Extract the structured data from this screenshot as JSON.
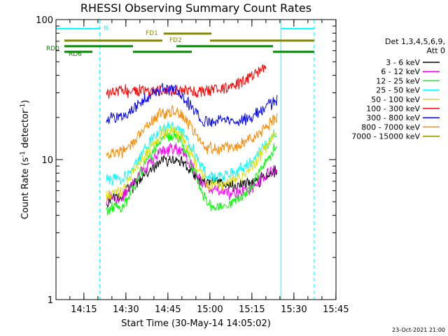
{
  "chart_data": {
    "type": "line",
    "title": "RHESSI Observing Summary Count Rates",
    "xlabel": "Start Time (30-May-14 14:05:02)",
    "ylabel_main": "Count Rate (s",
    "ylabel_sup": "-1",
    "ylabel_tail": " detector",
    "ylabel_end": ")",
    "yscale": "log",
    "ylim": [
      1,
      100
    ],
    "y_ticks": [
      {
        "value": 1,
        "label": "1"
      },
      {
        "value": 10,
        "label": "10"
      },
      {
        "value": 100,
        "label": "100"
      }
    ],
    "xlim_minutes": [
      0,
      100
    ],
    "x_ticks": [
      {
        "minutes": 9.967,
        "label": "14:15"
      },
      {
        "minutes": 24.967,
        "label": "14:30"
      },
      {
        "minutes": 39.967,
        "label": "14:45"
      },
      {
        "minutes": 54.967,
        "label": "15:00"
      },
      {
        "minutes": 69.967,
        "label": "15:15"
      },
      {
        "minutes": 84.967,
        "label": "15:30"
      },
      {
        "minutes": 99.967,
        "label": "15:45"
      }
    ],
    "legend_header": [
      "Det 1,3,4,5,6,9,",
      "Att 0"
    ],
    "legend_position": "right",
    "series": [
      {
        "name": "3 - 6 keV",
        "color": "#000000",
        "points": [
          [
            18,
            4.8
          ],
          [
            20,
            5.5
          ],
          [
            22,
            5.4
          ],
          [
            24,
            5.6
          ],
          [
            26,
            6.2
          ],
          [
            30,
            7.2
          ],
          [
            34,
            8.5
          ],
          [
            38,
            9.8
          ],
          [
            42,
            10.2
          ],
          [
            45,
            9.7
          ],
          [
            48,
            8.4
          ],
          [
            51,
            7.2
          ],
          [
            54,
            6.6
          ],
          [
            56,
            7.2
          ],
          [
            58,
            7.0
          ],
          [
            60,
            6.7
          ],
          [
            62,
            6.5
          ],
          [
            66,
            6.6
          ],
          [
            70,
            6.8
          ],
          [
            72,
            7.0
          ],
          [
            74,
            7.5
          ],
          [
            76,
            8.0
          ],
          [
            78,
            8.2
          ],
          [
            79,
            8.8
          ]
        ]
      },
      {
        "name": "6 - 12 keV",
        "color": "#ff00ff",
        "points": [
          [
            18,
            5.2
          ],
          [
            20,
            5.4
          ],
          [
            22,
            5.3
          ],
          [
            24,
            5.6
          ],
          [
            26,
            6.4
          ],
          [
            30,
            7.9
          ],
          [
            34,
            9.8
          ],
          [
            38,
            11.5
          ],
          [
            42,
            12.0
          ],
          [
            45,
            11.2
          ],
          [
            48,
            9.3
          ],
          [
            51,
            7.4
          ],
          [
            54,
            6.2
          ],
          [
            56,
            6.3
          ],
          [
            58,
            6.0
          ],
          [
            60,
            5.8
          ],
          [
            62,
            5.7
          ],
          [
            66,
            5.9
          ],
          [
            70,
            6.4
          ],
          [
            72,
            6.9
          ],
          [
            74,
            7.5
          ],
          [
            76,
            8.0
          ],
          [
            78,
            8.6
          ],
          [
            79,
            9.0
          ]
        ]
      },
      {
        "name": "12 - 25 keV",
        "color": "#00ff00",
        "points": [
          [
            18,
            4.3
          ],
          [
            20,
            4.5
          ],
          [
            22,
            4.6
          ],
          [
            24,
            4.6
          ],
          [
            26,
            5.4
          ],
          [
            30,
            7.8
          ],
          [
            34,
            11.0
          ],
          [
            38,
            14.0
          ],
          [
            42,
            15.0
          ],
          [
            45,
            13.2
          ],
          [
            48,
            9.8
          ],
          [
            51,
            6.7
          ],
          [
            54,
            4.8
          ],
          [
            56,
            4.7
          ],
          [
            58,
            4.6
          ],
          [
            60,
            4.8
          ],
          [
            62,
            4.9
          ],
          [
            66,
            5.3
          ],
          [
            70,
            6.6
          ],
          [
            72,
            7.6
          ],
          [
            74,
            8.8
          ],
          [
            76,
            10.2
          ],
          [
            78,
            12.0
          ],
          [
            79,
            13.5
          ]
        ]
      },
      {
        "name": "25 - 50 keV",
        "color": "#00ffff",
        "points": [
          [
            18,
            7.2
          ],
          [
            20,
            7.3
          ],
          [
            22,
            7.4
          ],
          [
            24,
            7.5
          ],
          [
            26,
            8.3
          ],
          [
            30,
            10.5
          ],
          [
            34,
            13.7
          ],
          [
            38,
            16.8
          ],
          [
            42,
            17.6
          ],
          [
            45,
            16.1
          ],
          [
            48,
            12.9
          ],
          [
            51,
            9.7
          ],
          [
            54,
            7.7
          ],
          [
            56,
            7.6
          ],
          [
            58,
            7.6
          ],
          [
            60,
            7.7
          ],
          [
            62,
            7.9
          ],
          [
            66,
            8.6
          ],
          [
            70,
            10.0
          ],
          [
            72,
            11.1
          ],
          [
            74,
            12.3
          ],
          [
            76,
            13.6
          ],
          [
            78,
            15.2
          ],
          [
            79,
            16.0
          ]
        ]
      },
      {
        "name": "50 - 100 keV",
        "color": "#dddd00",
        "points": [
          [
            18,
            5.5
          ],
          [
            20,
            5.7
          ],
          [
            22,
            5.8
          ],
          [
            24,
            6.0
          ],
          [
            26,
            7.2
          ],
          [
            30,
            9.5
          ],
          [
            34,
            12.5
          ],
          [
            38,
            15.6
          ],
          [
            42,
            16.2
          ],
          [
            45,
            14.8
          ],
          [
            48,
            11.5
          ],
          [
            51,
            8.5
          ],
          [
            54,
            6.6
          ],
          [
            56,
            6.6
          ],
          [
            58,
            6.6
          ],
          [
            60,
            6.7
          ],
          [
            62,
            6.8
          ],
          [
            66,
            7.5
          ],
          [
            70,
            9.0
          ],
          [
            72,
            10.1
          ],
          [
            74,
            11.6
          ],
          [
            76,
            13.3
          ],
          [
            78,
            15.4
          ],
          [
            79,
            16.5
          ]
        ]
      },
      {
        "name": "100 - 300 keV",
        "color": "#ff0000",
        "points": [
          [
            18,
            30.5
          ],
          [
            20,
            31.0
          ],
          [
            22,
            31.0
          ],
          [
            24,
            31.0
          ],
          [
            24.5,
            31.0
          ],
          [
            55.2,
            31.0
          ],
          [
            56,
            32.0
          ],
          [
            58,
            32.2
          ],
          [
            60,
            32.5
          ],
          [
            62,
            33.0
          ],
          [
            64,
            34.0
          ],
          [
            66,
            35.5
          ],
          [
            68,
            37.5
          ],
          [
            70,
            39.5
          ],
          [
            72,
            42.0
          ],
          [
            74,
            45.0
          ],
          [
            75,
            46.0
          ]
        ]
      },
      {
        "name": "300 - 800 keV",
        "color": "#0000ff",
        "points": [
          [
            18,
            19.6
          ],
          [
            20,
            19.7
          ],
          [
            22,
            19.9
          ],
          [
            24,
            20.2
          ],
          [
            26,
            21.5
          ],
          [
            30,
            25.5
          ],
          [
            34,
            29.5
          ],
          [
            38,
            32.0
          ],
          [
            42,
            31.5
          ],
          [
            45,
            29.0
          ],
          [
            48,
            24.5
          ],
          [
            51,
            20.6
          ],
          [
            54,
            18.8
          ],
          [
            56,
            18.8
          ],
          [
            58,
            18.9
          ],
          [
            60,
            19.0
          ],
          [
            62,
            19.1
          ],
          [
            66,
            19.3
          ],
          [
            70,
            20.2
          ],
          [
            72,
            21.4
          ],
          [
            74,
            22.9
          ],
          [
            76,
            24.6
          ],
          [
            78,
            26.3
          ],
          [
            79,
            27.2
          ]
        ]
      },
      {
        "name": "800 - 7000 keV",
        "color": "#ff8800",
        "points": [
          [
            18,
            10.5
          ],
          [
            20,
            11.0
          ],
          [
            22,
            11.3
          ],
          [
            24,
            11.6
          ],
          [
            26,
            12.5
          ],
          [
            30,
            15.3
          ],
          [
            34,
            18.9
          ],
          [
            38,
            21.7
          ],
          [
            42,
            22.2
          ],
          [
            45,
            20.7
          ],
          [
            48,
            17.4
          ],
          [
            51,
            14.2
          ],
          [
            54,
            12.2
          ],
          [
            56,
            12.1
          ],
          [
            58,
            12.1
          ],
          [
            60,
            12.2
          ],
          [
            62,
            12.3
          ],
          [
            66,
            12.9
          ],
          [
            70,
            14.2
          ],
          [
            72,
            15.3
          ],
          [
            74,
            16.7
          ],
          [
            76,
            18.1
          ],
          [
            78,
            19.5
          ],
          [
            79,
            20.4
          ]
        ]
      },
      {
        "name": "7000 - 15000 keV",
        "color": "#888800",
        "points": []
      }
    ],
    "vertical_markers": [
      {
        "minutes": 0,
        "color": "#00ffff",
        "style": "solid"
      },
      {
        "minutes": 15.6,
        "color": "#00ffff",
        "style": "dashed"
      },
      {
        "minutes": 80.3,
        "color": "#00ffff",
        "style": "solid"
      },
      {
        "minutes": 92.2,
        "color": "#00ffff",
        "style": "dashed"
      }
    ],
    "flag_bars": [
      {
        "label": "N",
        "color": "#00ffff",
        "level": 1,
        "segments": [
          [
            0,
            15.6
          ],
          [
            80.3,
            92.2
          ]
        ]
      },
      {
        "label": "FD1",
        "color": "#888800",
        "level": 2,
        "segments": [
          [
            38.5,
            55.5
          ]
        ]
      },
      {
        "label": "FD2",
        "color": "#888800",
        "level": 3,
        "segments": [
          [
            3,
            38
          ],
          [
            55,
            92.2
          ]
        ]
      },
      {
        "label": "RD0",
        "color": "#008800",
        "level": 4,
        "segments": [
          [
            3,
            27.5
          ],
          [
            43,
            77.5
          ]
        ]
      },
      {
        "label": "RD6",
        "color": "#008800",
        "level": 5,
        "segments": [
          [
            3,
            13
          ],
          [
            27.5,
            48.5
          ],
          [
            77.5,
            92.2
          ]
        ]
      }
    ]
  },
  "footer": {
    "timestamp": "23-Oct-2021 21:00"
  }
}
